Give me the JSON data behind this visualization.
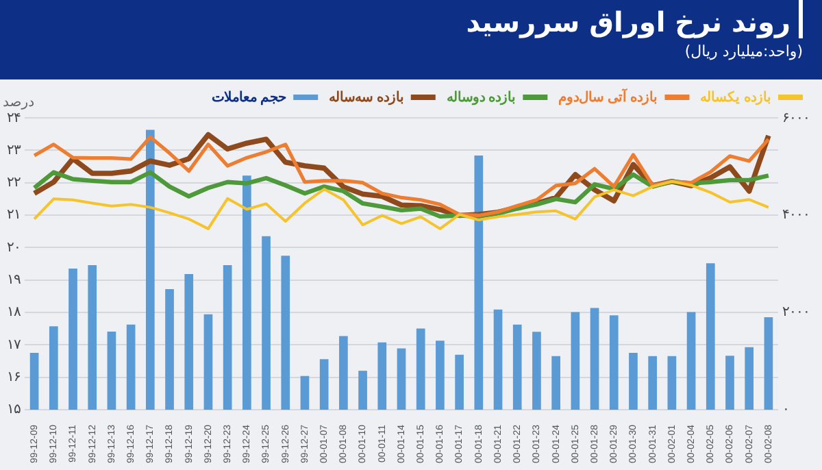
{
  "chart_data": {
    "type": "line",
    "title": "روند نرخ اوراق سررسید",
    "subtitle": "(واحد:میلیارد ریال)",
    "ylabel": "درصد",
    "categories": [
      "99-12-09",
      "99-12-10",
      "99-12-11",
      "99-12-12",
      "99-12-13",
      "99-12-16",
      "99-12-17",
      "99-12-18",
      "99-12-19",
      "99-12-20",
      "99-12-23",
      "99-12-24",
      "99-12-25",
      "99-12-26",
      "99-12-27",
      "00-01-07",
      "00-01-08",
      "00-01-10",
      "00-01-11",
      "00-01-14",
      "00-01-15",
      "00-01-16",
      "00-01-17",
      "00-01-18",
      "00-01-21",
      "00-01-22",
      "00-01-23",
      "00-01-24",
      "00-01-25",
      "00-01-28",
      "00-01-29",
      "00-01-30",
      "00-01-31",
      "00-02-01",
      "00-02-04",
      "00-02-05",
      "00-02-06",
      "00-02-07",
      "00-02-08"
    ],
    "series": [
      {
        "name": "بازده یکساله",
        "color": "#f5c32c",
        "values": [
          20.88,
          21.5,
          21.47,
          21.37,
          21.28,
          21.33,
          21.24,
          21.07,
          20.88,
          20.58,
          21.51,
          21.18,
          21.35,
          20.81,
          21.37,
          21.8,
          21.47,
          20.7,
          20.99,
          20.74,
          20.95,
          20.58,
          21.02,
          20.85,
          20.95,
          21.02,
          21.1,
          21.13,
          20.88,
          21.56,
          21.78,
          21.6,
          21.88,
          22.04,
          21.92,
          21.7,
          21.4,
          21.48,
          21.24
        ]
      },
      {
        "name": "بازده آتی سال‌دوم",
        "color": "#ed7d31",
        "values": [
          22.84,
          23.18,
          22.77,
          22.76,
          22.76,
          22.73,
          23.41,
          22.91,
          22.36,
          23.18,
          22.52,
          22.77,
          22.95,
          23.18,
          22.02,
          22.06,
          22.06,
          22.0,
          21.67,
          21.54,
          21.47,
          21.33,
          21.02,
          20.99,
          21.1,
          21.29,
          21.47,
          21.91,
          21.98,
          22.43,
          21.88,
          22.86,
          21.92,
          22.04,
          22.0,
          22.33,
          22.82,
          22.67,
          23.34
        ]
      },
      {
        "name": "بازده دوساله",
        "color": "#4e9a3a",
        "values": [
          21.84,
          22.32,
          22.11,
          22.06,
          22.02,
          22.02,
          22.32,
          21.88,
          21.58,
          21.84,
          22.02,
          21.98,
          22.14,
          21.92,
          21.67,
          21.88,
          21.74,
          21.36,
          21.26,
          21.15,
          21.2,
          20.96,
          20.99,
          20.96,
          21.05,
          21.2,
          21.33,
          21.5,
          21.4,
          21.95,
          21.81,
          22.25,
          21.88,
          22.04,
          21.98,
          22.02,
          22.08,
          22.08,
          22.22
        ]
      },
      {
        "name": "بازده سه‌ساله",
        "color": "#8e4a1c",
        "values": [
          21.67,
          22.02,
          22.74,
          22.29,
          22.29,
          22.36,
          22.67,
          22.54,
          22.74,
          23.48,
          23.04,
          23.22,
          23.34,
          22.63,
          22.52,
          22.45,
          21.87,
          21.65,
          21.58,
          21.31,
          21.29,
          21.17,
          20.99,
          21.02,
          21.09,
          21.24,
          21.36,
          21.54,
          22.25,
          21.78,
          21.44,
          22.56,
          21.91,
          22.04,
          21.91,
          22.15,
          22.49,
          21.74,
          23.45
        ]
      },
      {
        "name": "حجم معاملات",
        "type": "bar",
        "axis": "y2",
        "color": "#5b9bd5",
        "values": [
          1170,
          1715,
          2900,
          2973,
          1605,
          1750,
          5755,
          2480,
          2790,
          1960,
          2973,
          4815,
          3565,
          3165,
          693,
          1040,
          1515,
          800,
          1385,
          1260,
          1670,
          1420,
          1130,
          5225,
          2060,
          1750,
          1600,
          1100,
          2005,
          2090,
          1940,
          1170,
          1100,
          1100,
          2005,
          3010,
          1110,
          1285,
          1900
        ]
      }
    ],
    "ylim": [
      15,
      24
    ],
    "yticks": [
      {
        "value": 15,
        "label": "۱۵"
      },
      {
        "value": 16,
        "label": "۱۶"
      },
      {
        "value": 17,
        "label": "۱۷"
      },
      {
        "value": 18,
        "label": "۱۸"
      },
      {
        "value": 19,
        "label": "۱۹"
      },
      {
        "value": 20,
        "label": "۲۰"
      },
      {
        "value": 21,
        "label": "۲۱"
      },
      {
        "value": 22,
        "label": "۲۲"
      },
      {
        "value": 23,
        "label": "۲۳"
      },
      {
        "value": 24,
        "label": "۲۴"
      }
    ],
    "y2lim": [
      0,
      6000
    ],
    "y2ticks": [
      {
        "value": 0,
        "label": "۰"
      },
      {
        "value": 2000,
        "label": "۲۰۰۰"
      },
      {
        "value": 4000,
        "label": "۴۰۰۰"
      },
      {
        "value": 6000,
        "label": "۶۰۰۰"
      }
    ],
    "grid": "y",
    "legend": "top",
    "marker": "none",
    "line_style": "solid"
  }
}
